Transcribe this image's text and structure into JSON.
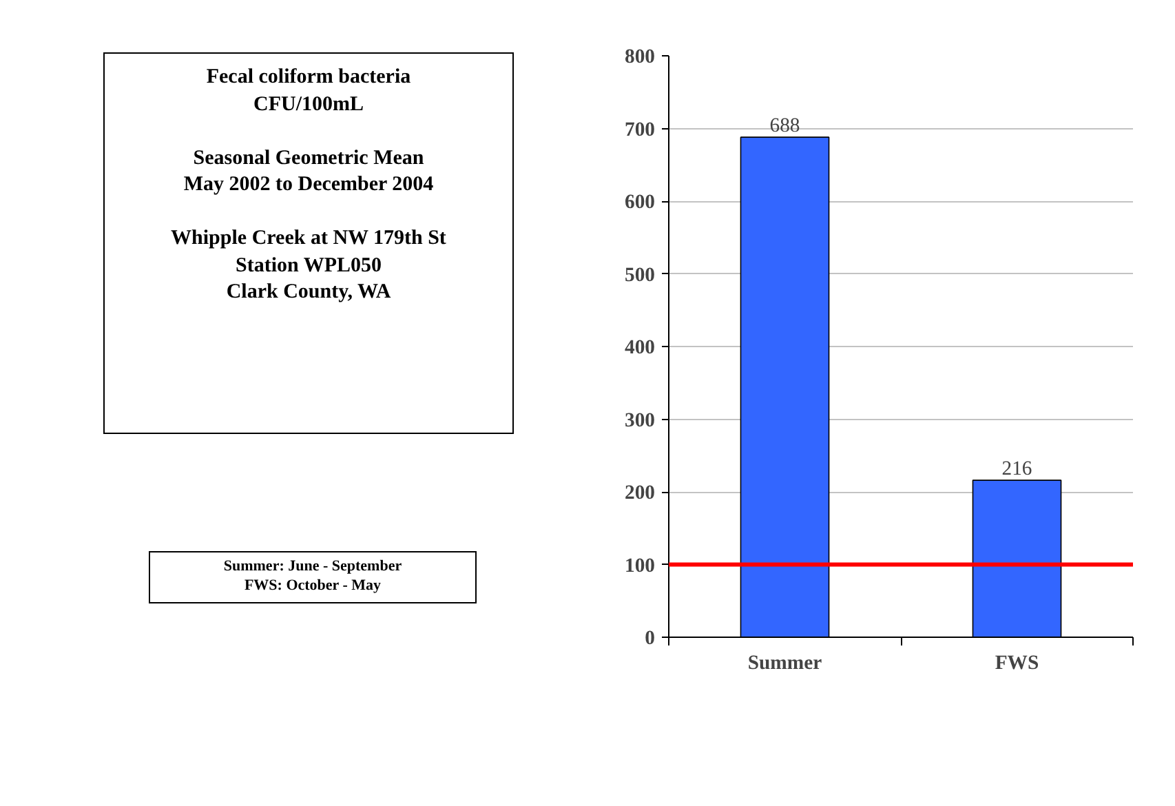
{
  "chart_data": {
    "type": "bar",
    "title": "Fecal coliform bacteria\nCFU/100mL",
    "subtitle": "Seasonal Geometric Mean\nMay 2002 to December 2004\n\nWhipple Creek at NW 179th St\nStation WPL050\nClark County, WA",
    "annotations": [
      "Summer:  June - September\nFWS:  October - May"
    ],
    "categories": [
      "Summer",
      "FWS"
    ],
    "values": [
      688,
      216
    ],
    "color": "#3366ff",
    "ylim": [
      0,
      800
    ],
    "yticks": [
      0,
      100,
      200,
      300,
      400,
      500,
      600,
      700,
      800
    ],
    "grid": "y",
    "data_labels": true,
    "ref_lines": [
      {
        "axis": "y",
        "value": 100,
        "color": "#ff0000"
      }
    ]
  }
}
